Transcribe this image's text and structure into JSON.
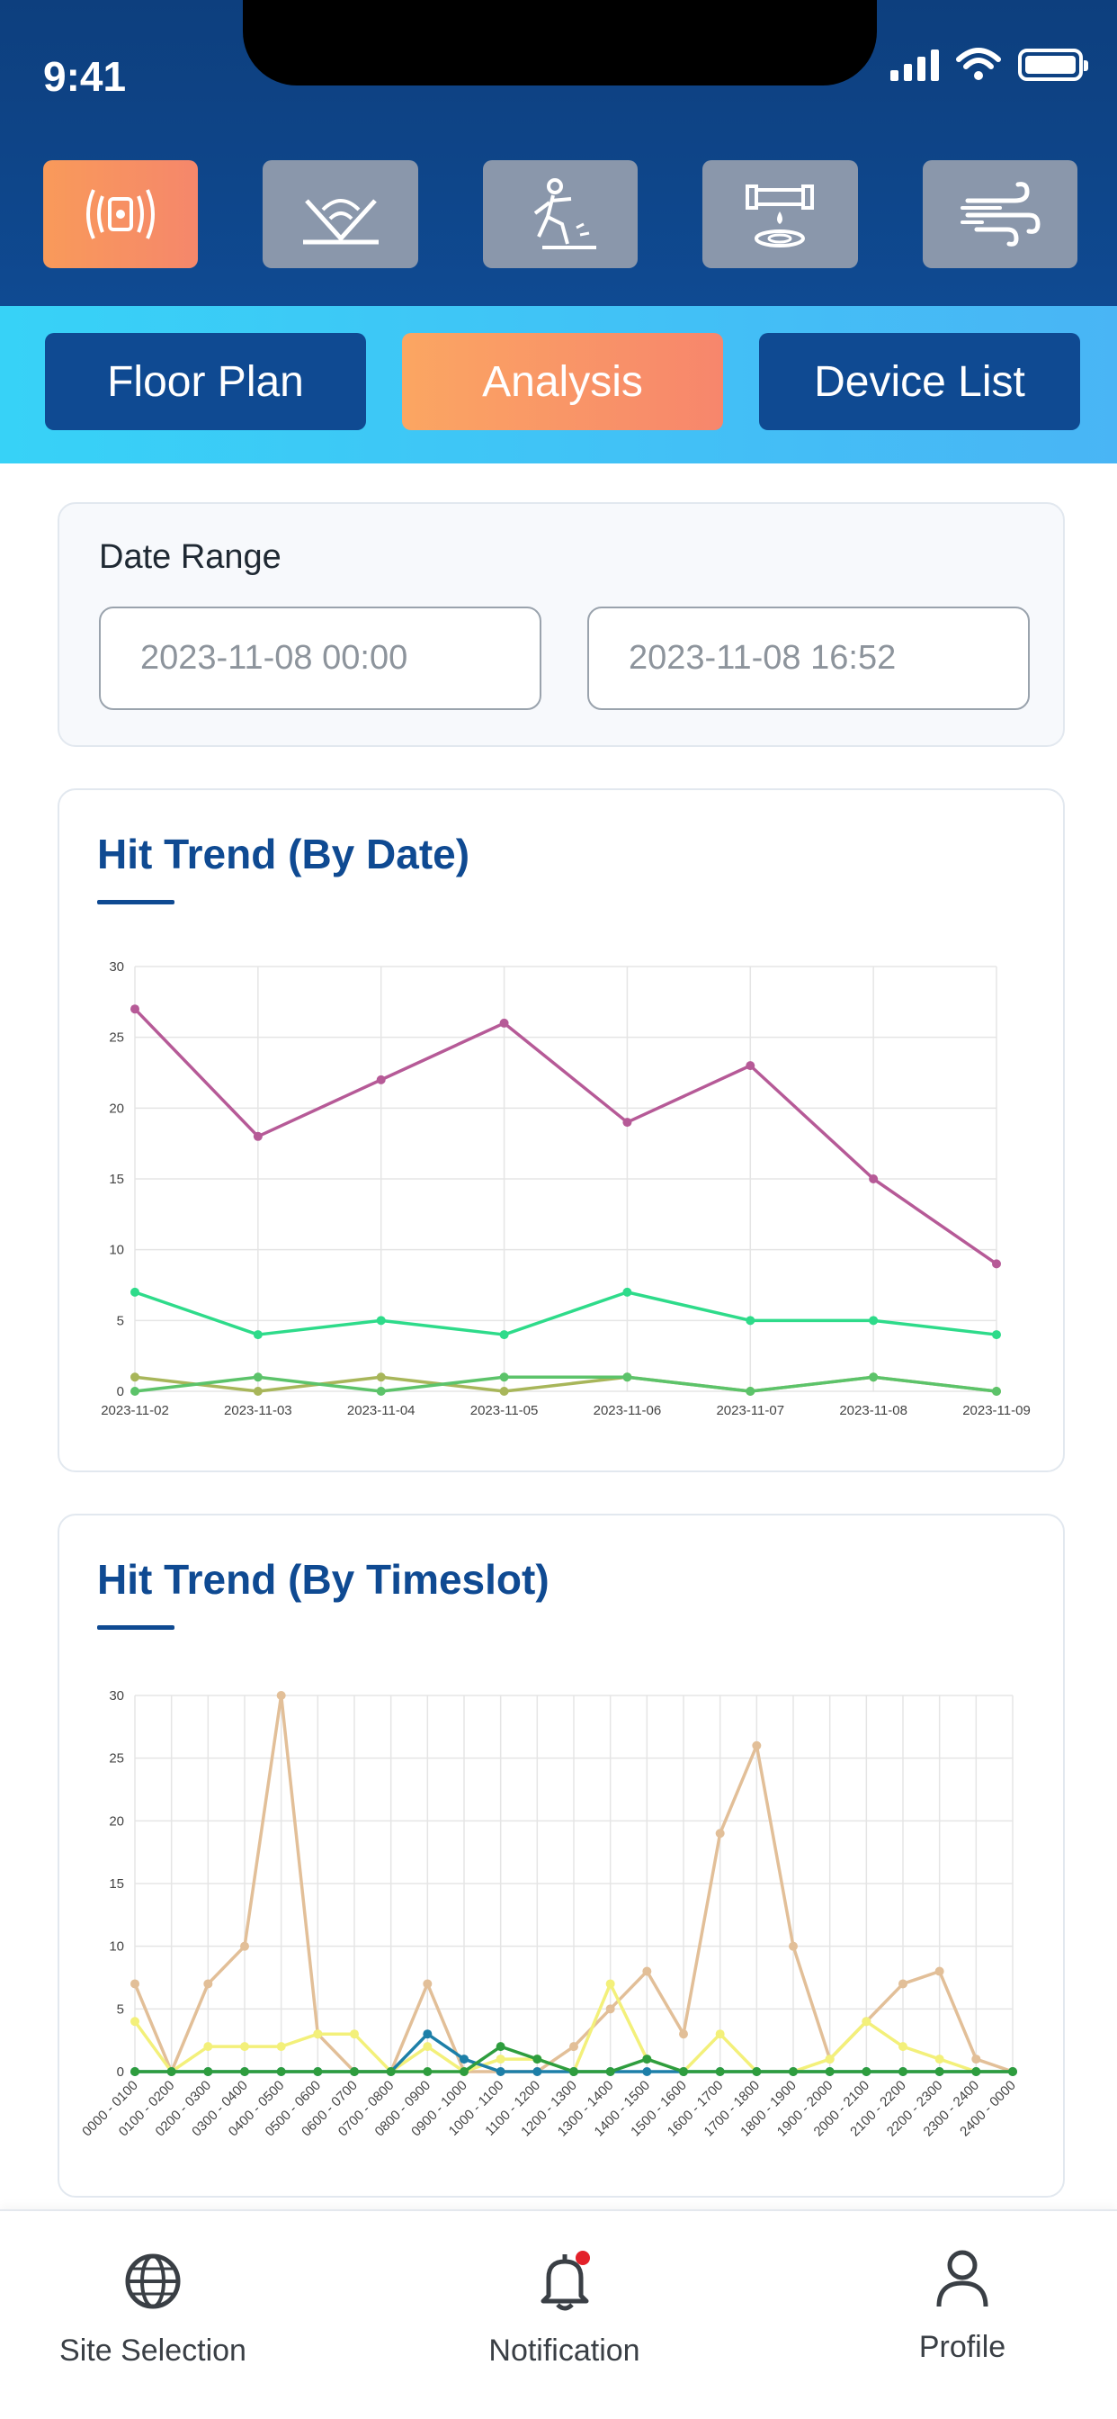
{
  "status_bar": {
    "time": "9:41"
  },
  "categories": [
    {
      "icon": "vibration-sensor-icon",
      "active": true
    },
    {
      "icon": "floor-signal-icon",
      "active": false
    },
    {
      "icon": "slip-fall-icon",
      "active": false
    },
    {
      "icon": "pipe-leak-icon",
      "active": false
    },
    {
      "icon": "wind-icon",
      "active": false
    }
  ],
  "tabs": {
    "floor_plan": "Floor Plan",
    "analysis": "Analysis",
    "device_list": "Device List"
  },
  "date_range": {
    "label": "Date Range",
    "start": "2023-11-08 00:00",
    "end": "2023-11-08 16:52"
  },
  "chart_date": {
    "title": "Hit Trend (By Date)",
    "chart_data": {
      "type": "line",
      "categories": [
        "2023-11-02",
        "2023-11-03",
        "2023-11-04",
        "2023-11-05",
        "2023-11-06",
        "2023-11-07",
        "2023-11-08",
        "2023-11-09"
      ],
      "ylim": [
        0,
        30
      ],
      "yticks": [
        0,
        5,
        10,
        15,
        20,
        25,
        30
      ],
      "grid": true,
      "series": [
        {
          "color": "#b65a97",
          "values": [
            27,
            18,
            22,
            26,
            19,
            23,
            15,
            9
          ]
        },
        {
          "color": "#2edb8a",
          "values": [
            7,
            4,
            5,
            4,
            7,
            5,
            5,
            4
          ]
        },
        {
          "color": "#a8b65a",
          "values": [
            1,
            0,
            1,
            0,
            1,
            0,
            1,
            0
          ]
        },
        {
          "color": "#5cc36a",
          "values": [
            0,
            1,
            0,
            1,
            1,
            0,
            1,
            0
          ]
        }
      ]
    }
  },
  "chart_timeslot": {
    "title": "Hit Trend (By Timeslot)",
    "chart_data": {
      "type": "line",
      "categories": [
        "0000 - 0100",
        "0100 - 0200",
        "0200 - 0300",
        "0300 - 0400",
        "0400 - 0500",
        "0500 - 0600",
        "0600 - 0700",
        "0700 - 0800",
        "0800 - 0900",
        "0900 - 1000",
        "1000 - 1100",
        "1100 - 1200",
        "1200 - 1300",
        "1300 - 1400",
        "1400 - 1500",
        "1500 - 1600",
        "1600 - 1700",
        "1700 - 1800",
        "1800 - 1900",
        "1900 - 2000",
        "2000 - 2100",
        "2100 - 2200",
        "2200 - 2300",
        "2300 - 2400",
        "2400 - 0000"
      ],
      "ylim": [
        0,
        30
      ],
      "yticks": [
        0,
        5,
        10,
        15,
        20,
        25,
        30
      ],
      "grid": true,
      "series": [
        {
          "color": "#e2bf98",
          "values": [
            7,
            0,
            7,
            10,
            30,
            3,
            0,
            0,
            7,
            0,
            0,
            0,
            2,
            5,
            8,
            3,
            19,
            26,
            10,
            1,
            4,
            7,
            8,
            1,
            0
          ]
        },
        {
          "color": "#f3f07a",
          "values": [
            4,
            0,
            2,
            2,
            2,
            3,
            3,
            0,
            2,
            0,
            1,
            1,
            0,
            7,
            1,
            0,
            3,
            0,
            0,
            1,
            4,
            2,
            1,
            0,
            0
          ]
        },
        {
          "color": "#1d7fa8",
          "values": [
            0,
            0,
            0,
            0,
            0,
            0,
            0,
            0,
            3,
            1,
            0,
            0,
            0,
            0,
            0,
            0,
            0,
            0,
            0,
            0,
            0,
            0,
            0,
            0,
            0
          ]
        },
        {
          "color": "#2e9d3e",
          "values": [
            0,
            0,
            0,
            0,
            0,
            0,
            0,
            0,
            0,
            0,
            2,
            1,
            0,
            0,
            1,
            0,
            0,
            0,
            0,
            0,
            0,
            0,
            0,
            0,
            0
          ]
        }
      ]
    }
  },
  "bottom_nav": {
    "site_selection": "Site Selection",
    "notification": "Notification",
    "profile": "Profile"
  }
}
